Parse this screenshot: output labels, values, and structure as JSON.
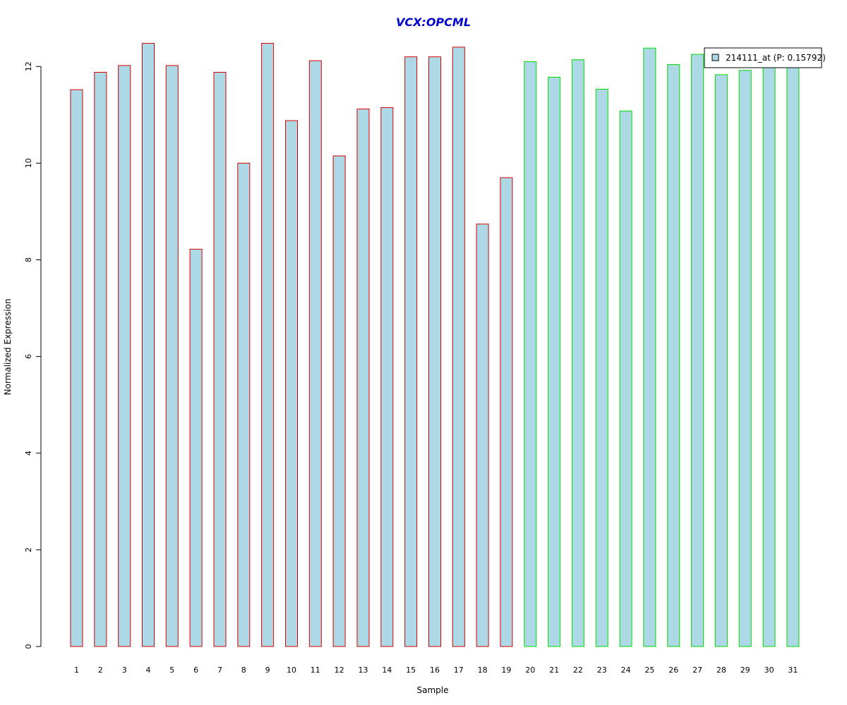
{
  "colors": {
    "title": "#0000CC",
    "bar_fill": "#ADD8E6",
    "group1_border": "#DD0000",
    "group2_border": "#00DD00",
    "axis": "#000000"
  },
  "chart_data": {
    "type": "bar",
    "title": "VCX:OPCML",
    "xlabel": "Sample",
    "ylabel": "Normalized Expression",
    "ylim": [
      0,
      12.5
    ],
    "yticks": [
      0,
      2,
      4,
      6,
      8,
      10,
      12
    ],
    "legend": {
      "label": "214111_at (P: 0.15792)",
      "position": "top-right"
    },
    "categories": [
      "1",
      "2",
      "3",
      "4",
      "5",
      "6",
      "7",
      "8",
      "9",
      "10",
      "11",
      "12",
      "13",
      "14",
      "15",
      "16",
      "17",
      "18",
      "19",
      "20",
      "21",
      "22",
      "23",
      "24",
      "25",
      "26",
      "27",
      "28",
      "29",
      "30",
      "31"
    ],
    "series": [
      {
        "values": [
          11.52,
          11.88,
          12.02,
          12.48,
          12.02,
          8.22,
          11.88,
          10.0,
          12.48,
          10.88,
          12.12,
          10.15,
          11.12,
          11.15,
          12.2,
          12.2,
          12.4,
          8.74,
          9.7,
          12.1,
          11.78,
          12.14,
          11.53,
          11.08,
          12.38,
          12.04,
          12.25,
          11.83,
          11.92,
          12.0,
          12.0
        ]
      }
    ],
    "groups": [
      "group1",
      "group1",
      "group1",
      "group1",
      "group1",
      "group1",
      "group1",
      "group1",
      "group1",
      "group1",
      "group1",
      "group1",
      "group1",
      "group1",
      "group1",
      "group1",
      "group1",
      "group1",
      "group1",
      "group2",
      "group2",
      "group2",
      "group2",
      "group2",
      "group2",
      "group2",
      "group2",
      "group2",
      "group2",
      "group2",
      "group2"
    ],
    "grid": false
  }
}
